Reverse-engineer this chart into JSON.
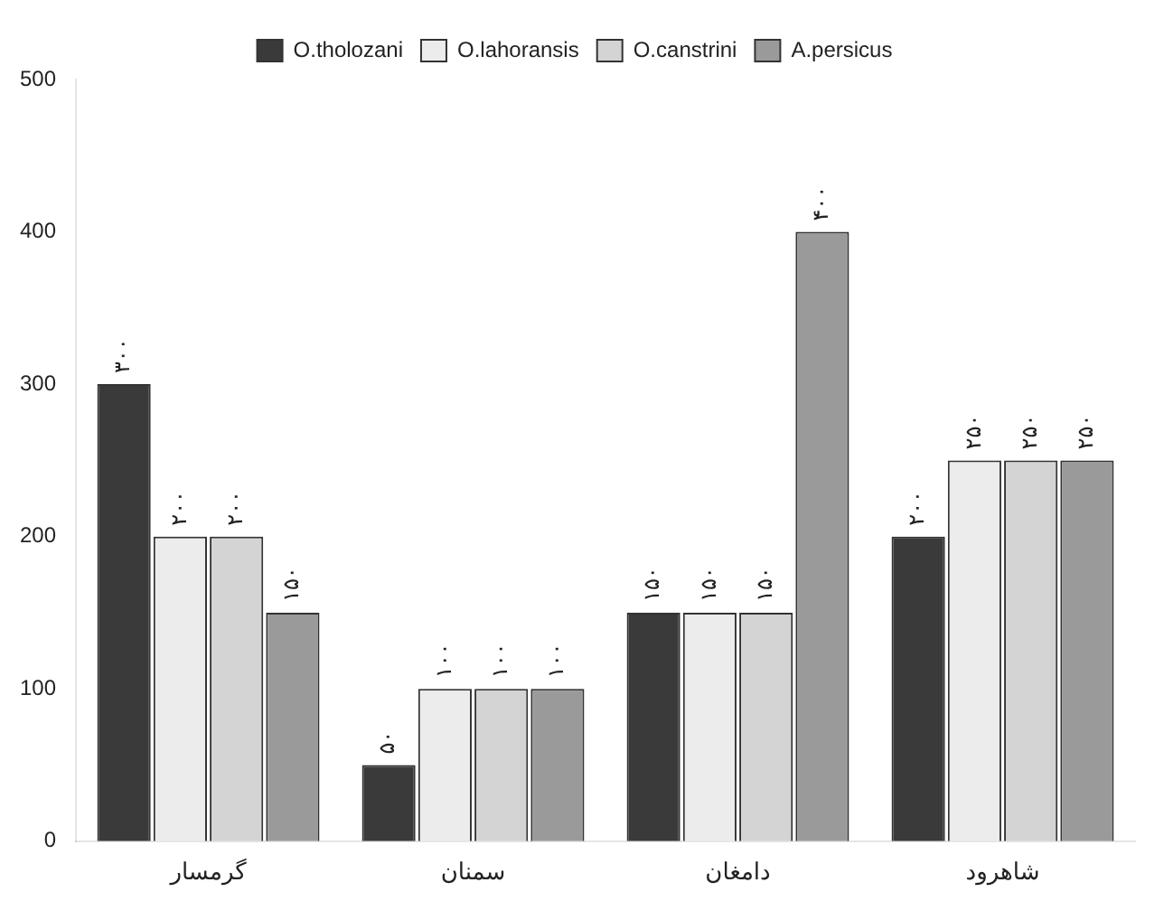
{
  "chart_data": {
    "type": "bar",
    "categories": [
      "گرمسار",
      "سمنان",
      "دامغان",
      "شاهرود"
    ],
    "series": [
      {
        "name": "O.tholozani",
        "color": "#3a3a3a",
        "values": [
          300,
          50,
          150,
          200
        ],
        "value_labels": [
          "۳۰۰",
          "۵۰",
          "۱۵۰",
          "۲۰۰"
        ]
      },
      {
        "name": "O.lahoransis",
        "color": "#ececec",
        "values": [
          200,
          100,
          150,
          250
        ],
        "value_labels": [
          "۲۰۰",
          "۱۰۰",
          "۱۵۰",
          "۲۵۰"
        ]
      },
      {
        "name": "O.canstrini",
        "color": "#d4d4d4",
        "values": [
          200,
          100,
          150,
          250
        ],
        "value_labels": [
          "۲۰۰",
          "۱۰۰",
          "۱۵۰",
          "۲۵۰"
        ]
      },
      {
        "name": "A.persicus",
        "color": "#9a9a9a",
        "values": [
          150,
          100,
          400,
          250
        ],
        "value_labels": [
          "۱۵۰",
          "۱۰۰",
          "۴۰۰",
          "۲۵۰"
        ]
      }
    ],
    "ylim": [
      0,
      500
    ],
    "yticks": [
      0,
      100,
      200,
      300,
      400,
      500
    ],
    "grid": false,
    "legend": "top"
  }
}
